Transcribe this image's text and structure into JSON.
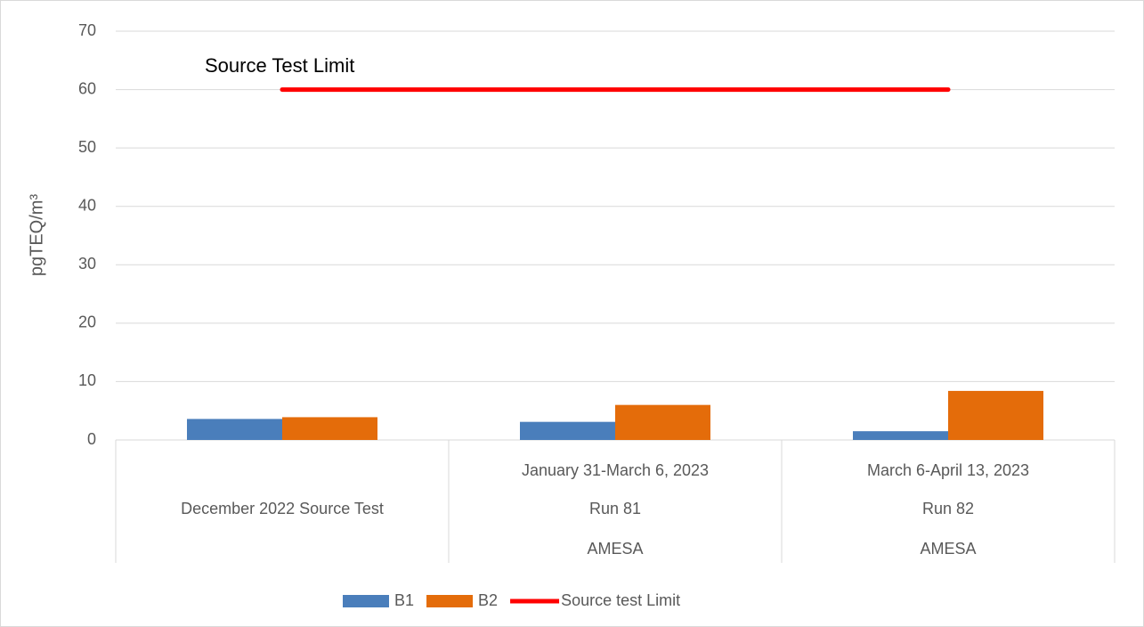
{
  "chart_data": {
    "type": "bar",
    "annotation": "Source Test Limit",
    "y_label": "pgTEQ/m³",
    "categories": [
      [
        "December 2022 Source Test"
      ],
      [
        "January 31-March 6, 2023",
        "Run 81",
        "AMESA"
      ],
      [
        "March 6-April 13, 2023",
        "Run 82",
        "AMESA"
      ]
    ],
    "series": [
      {
        "name": "B1",
        "color": "#4a7ebb",
        "values": [
          3.6,
          3.1,
          1.5
        ]
      },
      {
        "name": "B2",
        "color": "#e46c0a",
        "values": [
          3.9,
          6.0,
          8.4
        ]
      },
      {
        "name": "Source test Limit",
        "color": "#ff0000",
        "type": "line",
        "values": [
          60,
          60,
          60
        ]
      }
    ],
    "ylim": [
      0,
      70
    ],
    "yticks": [
      0,
      10,
      20,
      30,
      40,
      50,
      60,
      70
    ],
    "grid": true,
    "legend": "bottom"
  }
}
